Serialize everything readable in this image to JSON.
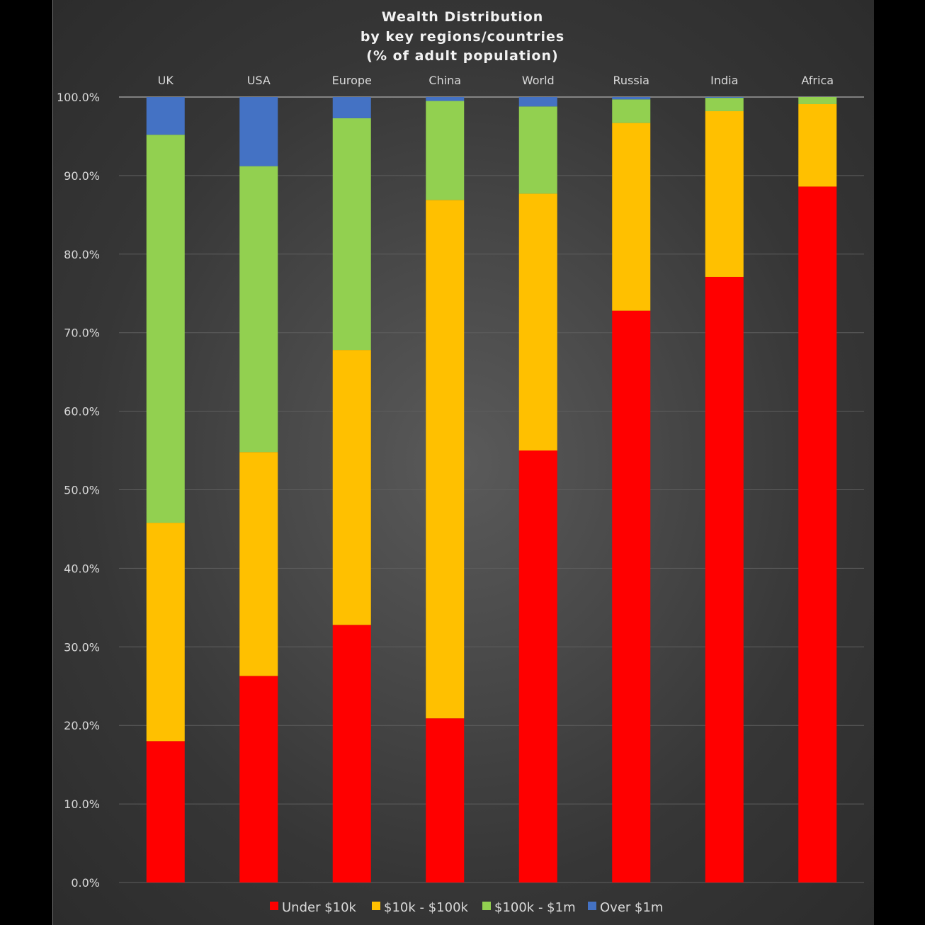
{
  "chart_data": {
    "type": "bar",
    "stacked": true,
    "title": [
      "Wealth Distribution",
      "by key regions/countries",
      "(% of adult population)"
    ],
    "xlabel": "",
    "ylabel": "",
    "categories": [
      "UK",
      "USA",
      "Europe",
      "China",
      "World",
      "Russia",
      "India",
      "Africa"
    ],
    "ylim": [
      0,
      100
    ],
    "yticks": [
      0,
      10,
      20,
      30,
      40,
      50,
      60,
      70,
      80,
      90,
      100
    ],
    "ytick_labels": [
      "0.0%",
      "10.0%",
      "20.0%",
      "30.0%",
      "40.0%",
      "50.0%",
      "60.0%",
      "70.0%",
      "80.0%",
      "90.0%",
      "100.0%"
    ],
    "grid": true,
    "x_axis_position": "top",
    "legend_position": "bottom",
    "series": [
      {
        "name": "Under $10k",
        "color": "#ff0000",
        "values": [
          18.0,
          26.3,
          32.8,
          20.9,
          55.0,
          72.8,
          77.1,
          88.6
        ]
      },
      {
        "name": "$10k - $100k",
        "color": "#ffc000",
        "values": [
          27.8,
          28.5,
          35.0,
          66.0,
          32.7,
          23.9,
          21.1,
          10.5
        ]
      },
      {
        "name": "$100k - $1m",
        "color": "#92d050",
        "values": [
          49.4,
          36.4,
          29.5,
          12.6,
          11.1,
          3.0,
          1.7,
          0.9
        ]
      },
      {
        "name": "Over $1m",
        "color": "#4472c4",
        "values": [
          4.8,
          8.8,
          2.7,
          0.5,
          1.2,
          0.3,
          0.1,
          0.0
        ]
      }
    ]
  }
}
